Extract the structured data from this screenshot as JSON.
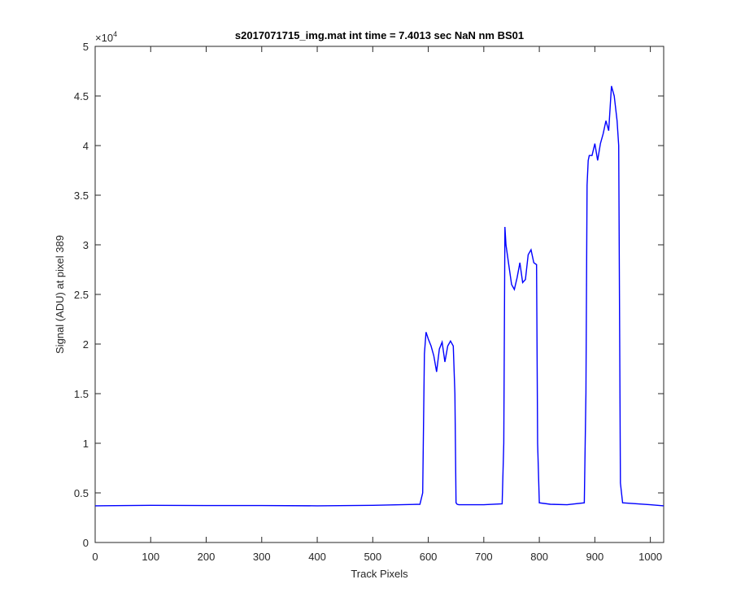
{
  "chart_data": {
    "type": "line",
    "title": "s2017071715_img.mat int time = 7.4013 sec  NaN nm BS01",
    "xlabel": "Track Pixels",
    "ylabel": "Signal (ADU) at pixel 389",
    "y_exponent_label": "×10",
    "y_exponent_power": "4",
    "xlim": [
      0,
      1024
    ],
    "ylim": [
      0,
      5
    ],
    "xticks": [
      0,
      100,
      200,
      300,
      400,
      500,
      600,
      700,
      800,
      900,
      1000
    ],
    "xtick_labels": [
      "0",
      "100",
      "200",
      "300",
      "400",
      "500",
      "600",
      "700",
      "800",
      "900",
      "1000"
    ],
    "yticks": [
      0,
      0.5,
      1,
      1.5,
      2,
      2.5,
      3,
      3.5,
      4,
      4.5,
      5
    ],
    "ytick_labels": [
      "0",
      "0.5",
      "1",
      "1.5",
      "2",
      "2.5",
      "3",
      "3.5",
      "4",
      "4.5",
      "5"
    ],
    "grid": false,
    "line_color": "#0000ff",
    "series": [
      {
        "x": [
          0,
          100,
          200,
          300,
          400,
          500,
          585,
          590,
          593,
          596,
          600,
          605,
          610,
          615,
          620,
          625,
          630,
          635,
          640,
          645,
          648,
          650,
          652,
          655,
          700,
          733,
          736,
          738,
          740,
          745,
          750,
          755,
          760,
          765,
          770,
          775,
          780,
          785,
          790,
          795,
          797,
          800,
          820,
          850,
          881,
          884,
          886,
          888,
          890,
          895,
          900,
          905,
          910,
          915,
          920,
          925,
          930,
          935,
          940,
          943,
          946,
          950,
          1000,
          1024
        ],
        "y": [
          0.37,
          0.375,
          0.372,
          0.372,
          0.37,
          0.375,
          0.385,
          0.5,
          1.9,
          2.12,
          2.05,
          1.98,
          1.88,
          1.72,
          1.95,
          2.02,
          1.82,
          1.98,
          2.03,
          1.98,
          1.5,
          0.4,
          0.385,
          0.38,
          0.38,
          0.39,
          1.0,
          3.18,
          3.0,
          2.8,
          2.6,
          2.55,
          2.67,
          2.82,
          2.62,
          2.65,
          2.9,
          2.95,
          2.82,
          2.8,
          1.0,
          0.4,
          0.385,
          0.38,
          0.4,
          1.5,
          3.6,
          3.85,
          3.9,
          3.9,
          4.02,
          3.85,
          4.02,
          4.12,
          4.25,
          4.15,
          4.6,
          4.5,
          4.25,
          4.0,
          0.6,
          0.4,
          0.38,
          0.37
        ]
      }
    ]
  }
}
